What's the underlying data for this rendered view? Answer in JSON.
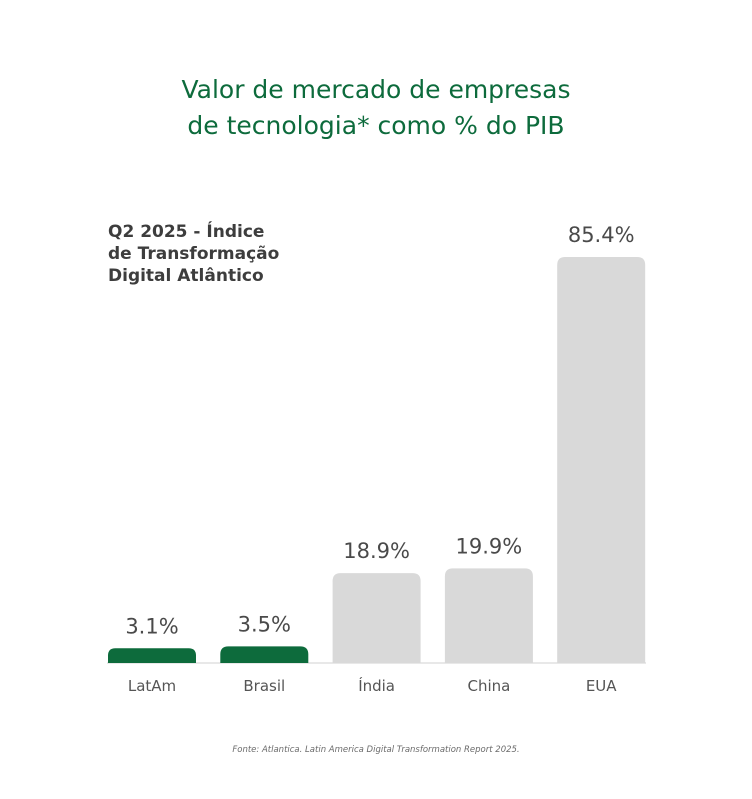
{
  "header": {
    "title_lines": [
      "Valor de mercado de empresas",
      "de tecnologia* como % do PIB"
    ],
    "subtitle_lines": [
      "Q2 2025 - Índice",
      "de Transformação",
      "Digital Atlântico"
    ]
  },
  "footer": {
    "source": "Fonte: Atlantica. Latin America Digital Transformation Report 2025."
  },
  "chart_data": {
    "type": "bar",
    "title": "Valor de mercado de empresas de tecnologia* como % do PIB",
    "subtitle": "Q2 2025 - Índice de Transformação Digital Atlântico",
    "categories": [
      "LatAm",
      "Brasil",
      "Índia",
      "China",
      "EUA"
    ],
    "values": [
      3.1,
      3.5,
      18.9,
      19.9,
      85.4
    ],
    "value_labels": [
      "3.1%",
      "3.5%",
      "18.9%",
      "19.9%",
      "85.4%"
    ],
    "colors": [
      "#0d6b3c",
      "#0d6b3c",
      "#d9d9d9",
      "#d9d9d9",
      "#d9d9d9"
    ],
    "xlabel": "",
    "ylabel": "",
    "ylim": [
      0,
      85.4
    ],
    "grid": false,
    "legend": "none"
  }
}
